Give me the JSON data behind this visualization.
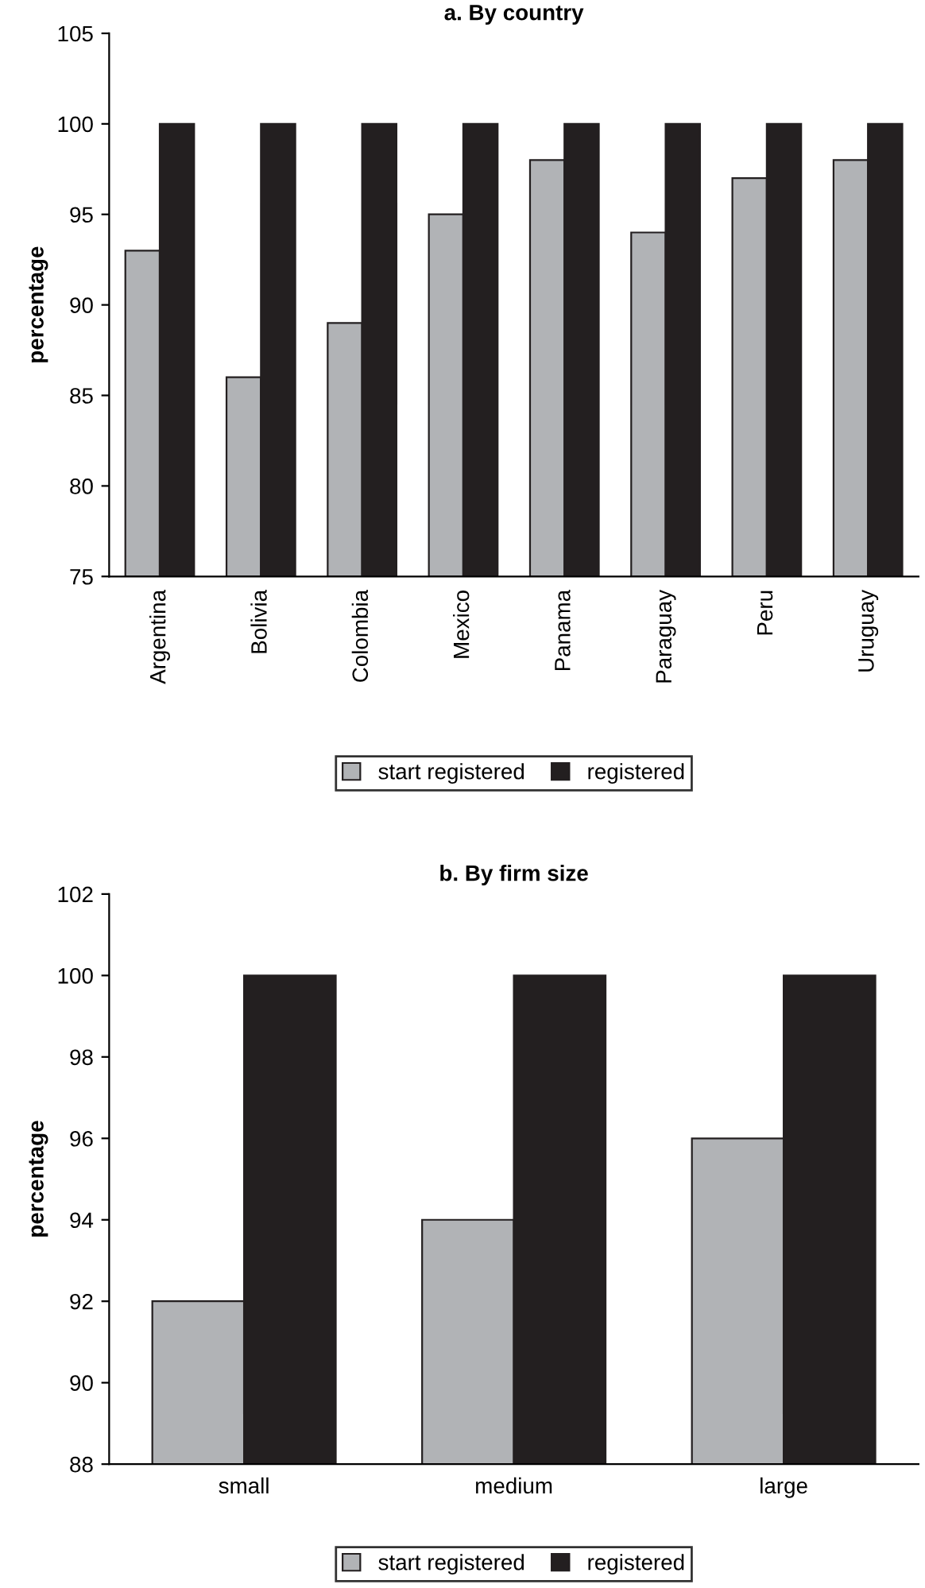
{
  "chart_data": [
    {
      "type": "bar",
      "title": "a. By country",
      "ylabel": "percentage",
      "categories": [
        "Argentina",
        "Bolivia",
        "Colombia",
        "Mexico",
        "Panama",
        "Paraguay",
        "Peru",
        "Uruguay"
      ],
      "series": [
        {
          "name": "start registered",
          "color": "#b1b3b6",
          "values": [
            93,
            86,
            89,
            95,
            98,
            94,
            97,
            98
          ]
        },
        {
          "name": "registered",
          "color": "#231f20",
          "values": [
            100,
            100,
            100,
            100,
            100,
            100,
            100,
            100
          ]
        }
      ],
      "ylim": [
        75,
        105
      ],
      "yticks": [
        75,
        80,
        85,
        90,
        95,
        100,
        105
      ],
      "grid": false,
      "legend": "bottom"
    },
    {
      "type": "bar",
      "title": "b. By firm size",
      "ylabel": "percentage",
      "categories": [
        "small",
        "medium",
        "large"
      ],
      "series": [
        {
          "name": "start registered",
          "color": "#b1b3b6",
          "values": [
            92,
            94,
            96
          ]
        },
        {
          "name": "registered",
          "color": "#231f20",
          "values": [
            100,
            100,
            100
          ]
        }
      ],
      "ylim": [
        88,
        102
      ],
      "yticks": [
        88,
        90,
        92,
        94,
        96,
        98,
        100,
        102
      ],
      "grid": false,
      "legend": "bottom"
    }
  ]
}
